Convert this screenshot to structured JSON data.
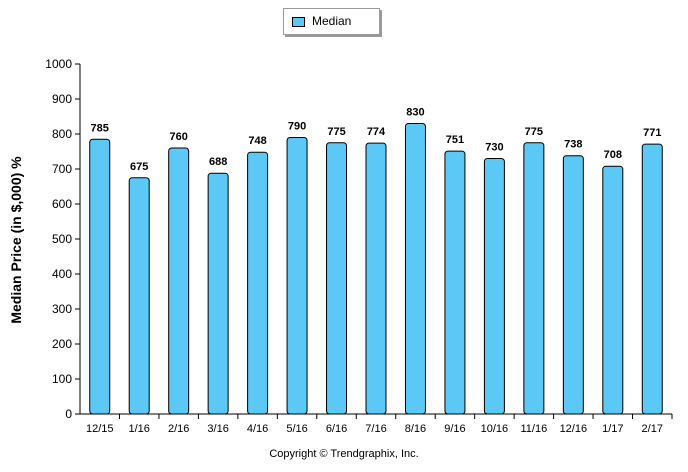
{
  "chart_data": {
    "type": "bar",
    "title": "",
    "xlabel": "",
    "ylabel": "Median Price (in $,000) %",
    "ylim": [
      0,
      1000
    ],
    "yticks": [
      0,
      100,
      200,
      300,
      400,
      500,
      600,
      700,
      800,
      900,
      1000
    ],
    "categories": [
      "12/15",
      "1/16",
      "2/16",
      "3/16",
      "4/16",
      "5/16",
      "6/16",
      "7/16",
      "8/16",
      "9/16",
      "10/16",
      "11/16",
      "12/16",
      "1/17",
      "2/17"
    ],
    "series": [
      {
        "name": "Median",
        "color": "#5bc8f5",
        "values": [
          785,
          675,
          760,
          688,
          748,
          790,
          775,
          774,
          830,
          751,
          730,
          775,
          738,
          708,
          771
        ]
      }
    ],
    "legend": {
      "position": "top-center",
      "label": "Median"
    },
    "grid": false
  },
  "footer": {
    "copyright": "Copyright © Trendgraphix, Inc."
  }
}
